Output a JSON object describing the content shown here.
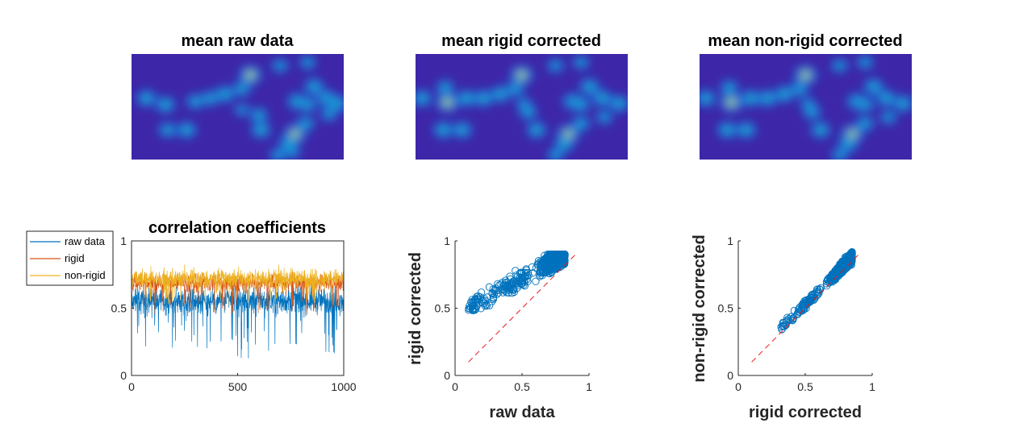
{
  "colors": {
    "raw": "#0072BD",
    "rigid": "#D95319",
    "nonrigid": "#EDB120",
    "identity_line": "#E41A1C",
    "image_bg": "#3E26A8"
  },
  "chart_data": [
    {
      "type": "heatmap",
      "title": "mean raw data",
      "blobs": [
        {
          "x": 0.07,
          "y": 0.42,
          "w": 1.0
        },
        {
          "x": 0.16,
          "y": 0.48,
          "w": 1.0
        },
        {
          "x": 0.17,
          "y": 0.72,
          "w": 0.9
        },
        {
          "x": 0.3,
          "y": 0.45,
          "w": 0.9
        },
        {
          "x": 0.37,
          "y": 0.42,
          "w": 0.9
        },
        {
          "x": 0.44,
          "y": 0.38,
          "w": 1.0
        },
        {
          "x": 0.52,
          "y": 0.33,
          "w": 0.9
        },
        {
          "x": 0.56,
          "y": 0.2,
          "w": 1.3
        },
        {
          "x": 0.6,
          "y": 0.58,
          "w": 0.9
        },
        {
          "x": 0.61,
          "y": 0.72,
          "w": 1.0
        },
        {
          "x": 0.7,
          "y": 0.11,
          "w": 0.8
        },
        {
          "x": 0.26,
          "y": 0.72,
          "w": 1.0
        },
        {
          "x": 0.77,
          "y": 0.76,
          "w": 1.4
        },
        {
          "x": 0.83,
          "y": 0.08,
          "w": 0.8
        },
        {
          "x": 0.69,
          "y": 0.96,
          "w": 0.8
        },
        {
          "x": 0.74,
          "y": 0.85,
          "w": 1.0
        },
        {
          "x": 0.52,
          "y": 0.53,
          "w": 0.7
        },
        {
          "x": 0.76,
          "y": 0.93,
          "w": 0.7
        },
        {
          "x": 0.78,
          "y": 0.45,
          "w": 1.0
        },
        {
          "x": 0.86,
          "y": 0.31,
          "w": 1.0
        },
        {
          "x": 0.83,
          "y": 0.48,
          "w": 0.9
        },
        {
          "x": 0.92,
          "y": 0.42,
          "w": 1.0
        },
        {
          "x": 0.97,
          "y": 0.47,
          "w": 1.0
        },
        {
          "x": 0.82,
          "y": 0.66,
          "w": 0.9
        },
        {
          "x": 0.93,
          "y": 0.57,
          "w": 0.8
        }
      ]
    },
    {
      "type": "heatmap",
      "title": "mean rigid corrected",
      "blobs": [
        {
          "x": 0.03,
          "y": 0.42,
          "w": 1.0
        },
        {
          "x": 0.14,
          "y": 0.32,
          "w": 0.9
        },
        {
          "x": 0.15,
          "y": 0.46,
          "w": 1.8
        },
        {
          "x": 0.13,
          "y": 0.72,
          "w": 1.0
        },
        {
          "x": 0.24,
          "y": 0.42,
          "w": 1.0
        },
        {
          "x": 0.32,
          "y": 0.42,
          "w": 1.0
        },
        {
          "x": 0.4,
          "y": 0.38,
          "w": 1.0
        },
        {
          "x": 0.47,
          "y": 0.33,
          "w": 0.9
        },
        {
          "x": 0.5,
          "y": 0.2,
          "w": 1.4
        },
        {
          "x": 0.53,
          "y": 0.55,
          "w": 0.9
        },
        {
          "x": 0.57,
          "y": 0.72,
          "w": 1.0
        },
        {
          "x": 0.66,
          "y": 0.11,
          "w": 0.8
        },
        {
          "x": 0.22,
          "y": 0.72,
          "w": 1.0
        },
        {
          "x": 0.72,
          "y": 0.76,
          "w": 1.5
        },
        {
          "x": 0.78,
          "y": 0.08,
          "w": 0.8
        },
        {
          "x": 0.66,
          "y": 0.96,
          "w": 0.8
        },
        {
          "x": 0.7,
          "y": 0.85,
          "w": 1.0
        },
        {
          "x": 0.51,
          "y": 0.47,
          "w": 0.7
        },
        {
          "x": 0.74,
          "y": 0.45,
          "w": 1.0
        },
        {
          "x": 0.82,
          "y": 0.31,
          "w": 1.0
        },
        {
          "x": 0.78,
          "y": 0.48,
          "w": 0.9
        },
        {
          "x": 0.88,
          "y": 0.42,
          "w": 1.0
        },
        {
          "x": 0.96,
          "y": 0.47,
          "w": 1.0
        },
        {
          "x": 0.78,
          "y": 0.66,
          "w": 0.9
        },
        {
          "x": 0.89,
          "y": 0.6,
          "w": 0.8
        }
      ]
    },
    {
      "type": "heatmap",
      "title": "mean non-rigid corrected",
      "blobs": [
        {
          "x": 0.03,
          "y": 0.42,
          "w": 1.0
        },
        {
          "x": 0.14,
          "y": 0.32,
          "w": 0.9
        },
        {
          "x": 0.15,
          "y": 0.46,
          "w": 1.9
        },
        {
          "x": 0.13,
          "y": 0.72,
          "w": 1.0
        },
        {
          "x": 0.24,
          "y": 0.42,
          "w": 1.0
        },
        {
          "x": 0.32,
          "y": 0.42,
          "w": 1.0
        },
        {
          "x": 0.4,
          "y": 0.38,
          "w": 1.0
        },
        {
          "x": 0.47,
          "y": 0.33,
          "w": 0.9
        },
        {
          "x": 0.5,
          "y": 0.2,
          "w": 1.5
        },
        {
          "x": 0.53,
          "y": 0.55,
          "w": 0.9
        },
        {
          "x": 0.57,
          "y": 0.72,
          "w": 1.0
        },
        {
          "x": 0.66,
          "y": 0.11,
          "w": 0.8
        },
        {
          "x": 0.22,
          "y": 0.72,
          "w": 1.0
        },
        {
          "x": 0.72,
          "y": 0.76,
          "w": 1.5
        },
        {
          "x": 0.78,
          "y": 0.08,
          "w": 0.8
        },
        {
          "x": 0.66,
          "y": 0.96,
          "w": 0.8
        },
        {
          "x": 0.7,
          "y": 0.85,
          "w": 1.0
        },
        {
          "x": 0.51,
          "y": 0.47,
          "w": 0.7
        },
        {
          "x": 0.74,
          "y": 0.45,
          "w": 1.0
        },
        {
          "x": 0.82,
          "y": 0.31,
          "w": 1.0
        },
        {
          "x": 0.78,
          "y": 0.48,
          "w": 0.9
        },
        {
          "x": 0.88,
          "y": 0.42,
          "w": 1.0
        },
        {
          "x": 0.96,
          "y": 0.47,
          "w": 1.0
        },
        {
          "x": 0.78,
          "y": 0.66,
          "w": 0.9
        },
        {
          "x": 0.89,
          "y": 0.6,
          "w": 0.8
        }
      ]
    },
    {
      "type": "line",
      "title": "correlation coefficients",
      "xlim": [
        0,
        1000
      ],
      "ylim": [
        0,
        1
      ],
      "xticks": [
        "0",
        "500",
        "1000"
      ],
      "yticks": [
        "0",
        "0.5",
        "1"
      ],
      "n_points": 1000,
      "legend_position": "outside-left",
      "series": [
        {
          "name": "raw data",
          "mean": 0.56,
          "spread": 0.1,
          "dips_to": 0.12
        },
        {
          "name": "rigid",
          "mean": 0.69,
          "spread": 0.06,
          "dips_to": 0.45
        },
        {
          "name": "non-rigid",
          "mean": 0.72,
          "spread": 0.07,
          "dips_to": 0.52
        }
      ]
    },
    {
      "type": "scatter",
      "xlabel": "raw data",
      "ylabel": "rigid corrected",
      "xlim": [
        0,
        1
      ],
      "ylim": [
        0,
        1
      ],
      "xticks": [
        "0",
        "0.5",
        "1"
      ],
      "yticks": [
        "0",
        "0.5",
        "1"
      ],
      "reference_line": [
        [
          0.1,
          0.1
        ],
        [
          0.9,
          0.9
        ]
      ],
      "point_cloud": {
        "n": 1000,
        "x_range": [
          0.1,
          0.82
        ],
        "y_range": [
          0.33,
          0.9
        ]
      }
    },
    {
      "type": "scatter",
      "xlabel": "rigid corrected",
      "ylabel": "non-rigid corrected",
      "xlim": [
        0,
        1
      ],
      "ylim": [
        0,
        1
      ],
      "xticks": [
        "0",
        "0.5",
        "1"
      ],
      "yticks": [
        "0",
        "0.5",
        "1"
      ],
      "reference_line": [
        [
          0.1,
          0.1
        ],
        [
          0.9,
          0.9
        ]
      ],
      "point_cloud": {
        "n": 1000,
        "x_range": [
          0.32,
          0.9
        ],
        "y_range": [
          0.32,
          0.92
        ]
      }
    }
  ]
}
